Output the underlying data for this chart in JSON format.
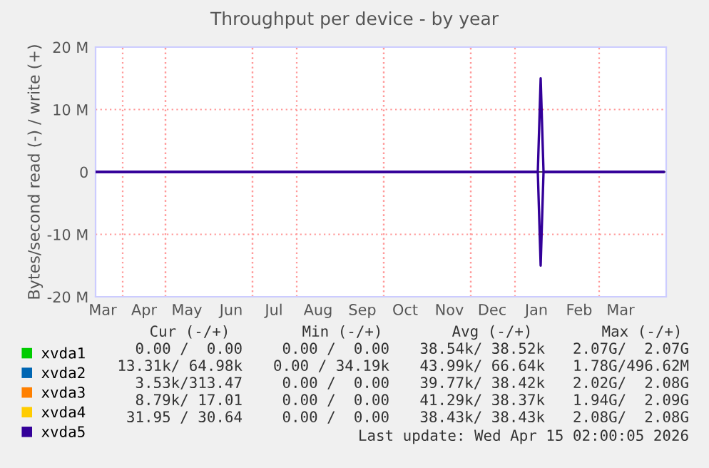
{
  "chart_data": {
    "type": "line",
    "title": "Throughput per device - by year",
    "ylabel": "Bytes/second read (-) / write (+)",
    "xlim": [
      "2025-03-13",
      "2026-04-17"
    ],
    "ylim": [
      -20000000,
      20000000
    ],
    "yticks": [
      {
        "value": -20000000,
        "label": "-20 M"
      },
      {
        "value": -10000000,
        "label": "-10 M"
      },
      0,
      {
        "value": 10000000,
        "label": "10 M"
      },
      {
        "value": 20000000,
        "label": "20 M"
      }
    ],
    "xticks": [
      {
        "value": "2025-03-18",
        "label": "Mar"
      },
      {
        "value": "2025-04-16",
        "label": "Apr"
      },
      {
        "value": "2025-05-16",
        "label": "May"
      },
      {
        "value": "2025-06-16",
        "label": "Jun"
      },
      {
        "value": "2025-07-16",
        "label": "Jul"
      },
      {
        "value": "2025-08-16",
        "label": "Aug"
      },
      {
        "value": "2025-09-16",
        "label": "Sep"
      },
      {
        "value": "2025-10-16",
        "label": "Oct"
      },
      {
        "value": "2025-11-16",
        "label": "Nov"
      },
      {
        "value": "2025-12-16",
        "label": "Dec"
      },
      {
        "value": "2026-01-16",
        "label": "Jan"
      },
      {
        "value": "2026-02-15",
        "label": "Feb"
      },
      {
        "value": "2026-03-16",
        "label": "Mar"
      }
    ],
    "grid": true,
    "legend": "bottom left",
    "x": [
      "2025-03-13",
      "2026-01-17",
      "2026-01-19",
      "2026-01-21",
      "2026-04-15"
    ],
    "series": [
      {
        "name": "xvda1",
        "color": "#00cc00",
        "values": [
          null,
          null,
          null,
          null,
          null
        ]
      },
      {
        "name": "xvda2",
        "color": "#0066b3",
        "values": [
          null,
          null,
          null,
          null,
          null
        ]
      },
      {
        "name": "xvda3",
        "color": "#ff8000",
        "values": [
          null,
          null,
          null,
          null,
          null
        ]
      },
      {
        "name": "xvda4",
        "color": "#ffcc00",
        "values": [
          null,
          null,
          null,
          null,
          null
        ]
      },
      {
        "name": "xvda5",
        "color": "#330099",
        "values": [
          0,
          0,
          15000000,
          0,
          0
        ]
      },
      {
        "color": "#330099",
        "values": [
          0,
          0,
          -15000000,
          0,
          0
        ]
      }
    ],
    "annotations": [
      "Cur (-/+)",
      "Min (-/+)",
      "Avg (-/+)",
      "Max (-/+)",
      "0.00 /  0.00",
      "0.00 /  0.00",
      "38.54k/ 38.52k",
      "2.07G/  2.07G",
      "13.31k/ 64.98k",
      "0.00 / 34.19k",
      "43.99k/ 66.64k",
      "1.78G/496.62M",
      "3.53k/313.47",
      "0.00 /  0.00",
      "39.77k/ 38.42k",
      "2.02G/  2.08G",
      "8.79k/ 17.01",
      "0.00 /  0.00",
      "41.29k/ 38.37k",
      "1.94G/  2.09G",
      "31.95 / 30.64",
      "0.00 /  0.00",
      "38.43k/ 38.43k",
      "2.08G/  2.08G",
      "Last update: Wed Apr 15 02:00:05 2026"
    ]
  }
}
